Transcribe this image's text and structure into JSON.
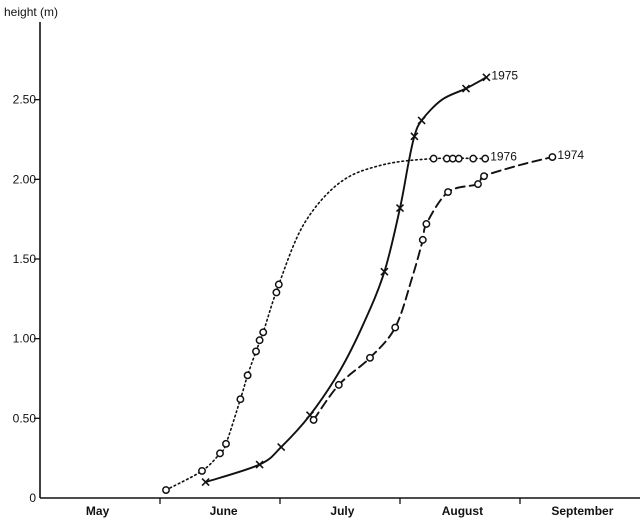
{
  "chart_data": {
    "type": "line",
    "ylabel": "height (m)",
    "ylim": [
      0,
      3.0
    ],
    "xlim": [
      0,
      5
    ],
    "grid": false,
    "y_ticks": [
      {
        "value": 0,
        "label": "0"
      },
      {
        "value": 0.5,
        "label": "0.50"
      },
      {
        "value": 1.0,
        "label": "1.00"
      },
      {
        "value": 1.5,
        "label": "1.50"
      },
      {
        "value": 2.0,
        "label": "2.00"
      },
      {
        "value": 2.5,
        "label": "2.50"
      }
    ],
    "x_tick_positions": [
      1,
      2,
      3,
      4
    ],
    "month_labels": [
      {
        "label": "May",
        "pos": 0.48
      },
      {
        "label": "June",
        "pos": 1.53
      },
      {
        "label": "July",
        "pos": 2.52
      },
      {
        "label": "August",
        "pos": 3.52
      },
      {
        "label": "September",
        "pos": 4.52
      }
    ],
    "series": [
      {
        "name": "1975",
        "style": "solid",
        "marker": "cross",
        "points": [
          [
            1.38,
            0.1
          ],
          [
            1.83,
            0.21
          ],
          [
            2.01,
            0.32
          ],
          [
            2.25,
            0.52
          ],
          [
            2.87,
            1.42
          ],
          [
            3.0,
            1.82
          ],
          [
            3.12,
            2.27
          ],
          [
            3.18,
            2.37
          ],
          [
            3.55,
            2.57
          ],
          [
            3.72,
            2.64
          ]
        ],
        "curve": [
          [
            1.38,
            0.1
          ],
          [
            1.83,
            0.21
          ],
          [
            2.01,
            0.32
          ],
          [
            2.25,
            0.52
          ],
          [
            2.5,
            0.8
          ],
          [
            2.7,
            1.1
          ],
          [
            2.87,
            1.42
          ],
          [
            3.0,
            1.82
          ],
          [
            3.07,
            2.1
          ],
          [
            3.12,
            2.27
          ],
          [
            3.18,
            2.37
          ],
          [
            3.35,
            2.5
          ],
          [
            3.55,
            2.57
          ],
          [
            3.72,
            2.64
          ]
        ]
      },
      {
        "name": "1976",
        "style": "dotted",
        "marker": "circle",
        "points": [
          [
            1.05,
            0.05
          ],
          [
            1.35,
            0.17
          ],
          [
            1.5,
            0.28
          ],
          [
            1.55,
            0.34
          ],
          [
            1.67,
            0.62
          ],
          [
            1.73,
            0.77
          ],
          [
            1.8,
            0.92
          ],
          [
            1.83,
            0.99
          ],
          [
            1.86,
            1.04
          ],
          [
            1.97,
            1.29
          ],
          [
            1.99,
            1.34
          ],
          [
            3.28,
            2.13
          ],
          [
            3.39,
            2.13
          ],
          [
            3.44,
            2.13
          ],
          [
            3.49,
            2.13
          ],
          [
            3.61,
            2.13
          ],
          [
            3.71,
            2.13
          ]
        ],
        "curve": [
          [
            1.05,
            0.05
          ],
          [
            1.35,
            0.17
          ],
          [
            1.5,
            0.28
          ],
          [
            1.55,
            0.34
          ],
          [
            1.67,
            0.62
          ],
          [
            1.73,
            0.77
          ],
          [
            1.8,
            0.92
          ],
          [
            1.86,
            1.04
          ],
          [
            1.99,
            1.34
          ],
          [
            2.2,
            1.72
          ],
          [
            2.5,
            1.98
          ],
          [
            2.85,
            2.09
          ],
          [
            3.28,
            2.13
          ],
          [
            3.71,
            2.13
          ]
        ]
      },
      {
        "name": "1974",
        "style": "dashed",
        "marker": "circle",
        "points": [
          [
            2.28,
            0.49
          ],
          [
            2.49,
            0.71
          ],
          [
            2.75,
            0.88
          ],
          [
            2.96,
            1.07
          ],
          [
            3.19,
            1.62
          ],
          [
            3.22,
            1.72
          ],
          [
            3.4,
            1.92
          ],
          [
            3.65,
            1.97
          ],
          [
            3.7,
            2.02
          ],
          [
            4.27,
            2.14
          ]
        ],
        "curve": [
          [
            2.28,
            0.49
          ],
          [
            2.49,
            0.71
          ],
          [
            2.75,
            0.88
          ],
          [
            2.96,
            1.07
          ],
          [
            3.1,
            1.38
          ],
          [
            3.19,
            1.62
          ],
          [
            3.22,
            1.72
          ],
          [
            3.4,
            1.92
          ],
          [
            3.65,
            1.97
          ],
          [
            3.7,
            2.02
          ],
          [
            4.0,
            2.09
          ],
          [
            4.27,
            2.14
          ]
        ]
      }
    ]
  }
}
